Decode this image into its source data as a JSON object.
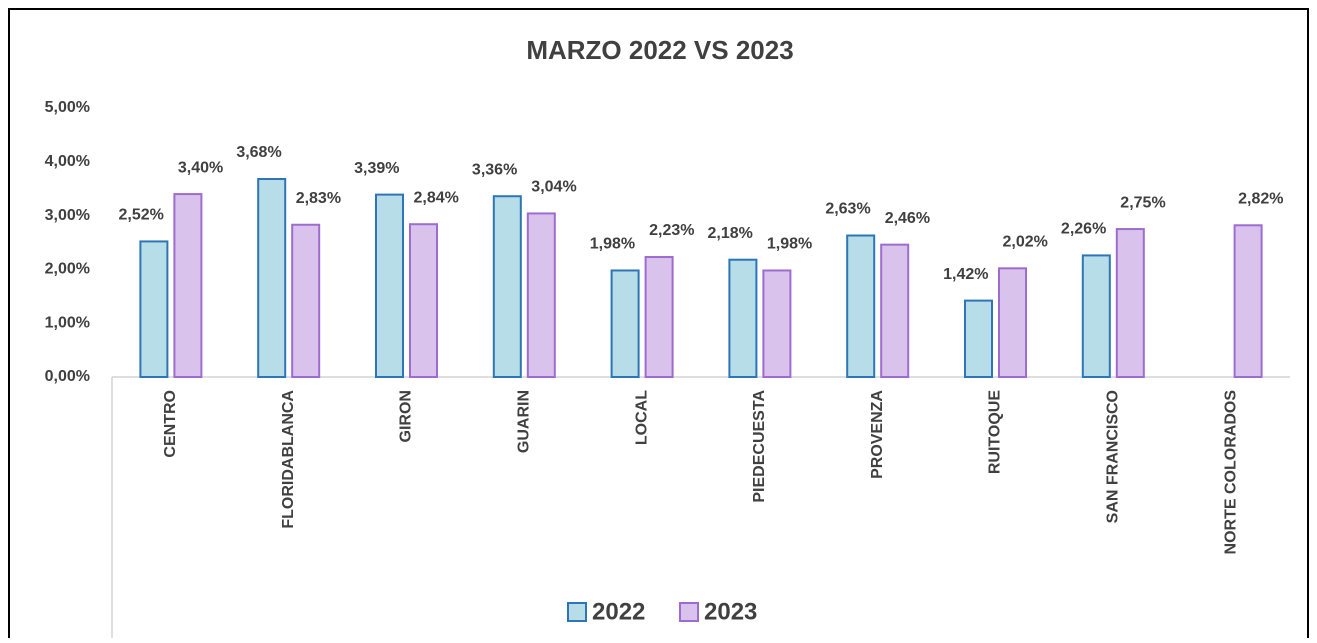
{
  "chart_data": {
    "type": "bar",
    "title": "MARZO 2022 VS 2023",
    "categories": [
      "CENTRO",
      "FLORIDABLANCA",
      "GIRON",
      "GUARIN",
      "LOCAL",
      "PIEDECUESTA",
      "PROVENZA",
      "RUITOQUE",
      "SAN FRANCISCO",
      "NORTE COLORADOS"
    ],
    "series": [
      {
        "name": "2022",
        "color": "#b7dde8",
        "stroke": "#2e75b6",
        "values": [
          2.52,
          3.68,
          3.39,
          3.36,
          1.98,
          2.18,
          2.63,
          1.42,
          2.26,
          null
        ],
        "value_labels": [
          "2,52%",
          "3,68%",
          "3,39%",
          "3,36%",
          "1,98%",
          "2,18%",
          "2,63%",
          "1,42%",
          "2,26%",
          null
        ]
      },
      {
        "name": "2023",
        "color": "#d9c3ec",
        "stroke": "#9e6bcf",
        "values": [
          3.4,
          2.83,
          2.84,
          3.04,
          2.23,
          1.98,
          2.46,
          2.02,
          2.75,
          2.82
        ],
        "value_labels": [
          "3,40%",
          "2,83%",
          "2,84%",
          "3,04%",
          "2,23%",
          "1,98%",
          "2,46%",
          "2,02%",
          "2,75%",
          "2,82%"
        ]
      }
    ],
    "ylim": [
      0,
      5
    ],
    "yticks": [
      {
        "value": 0,
        "label": "0,00%"
      },
      {
        "value": 1,
        "label": "1,00%"
      },
      {
        "value": 2,
        "label": "2,00%"
      },
      {
        "value": 3,
        "label": "3,00%"
      },
      {
        "value": 4,
        "label": "4,00%"
      },
      {
        "value": 5,
        "label": "5,00%"
      }
    ],
    "grid": false,
    "legend": "bottom"
  }
}
